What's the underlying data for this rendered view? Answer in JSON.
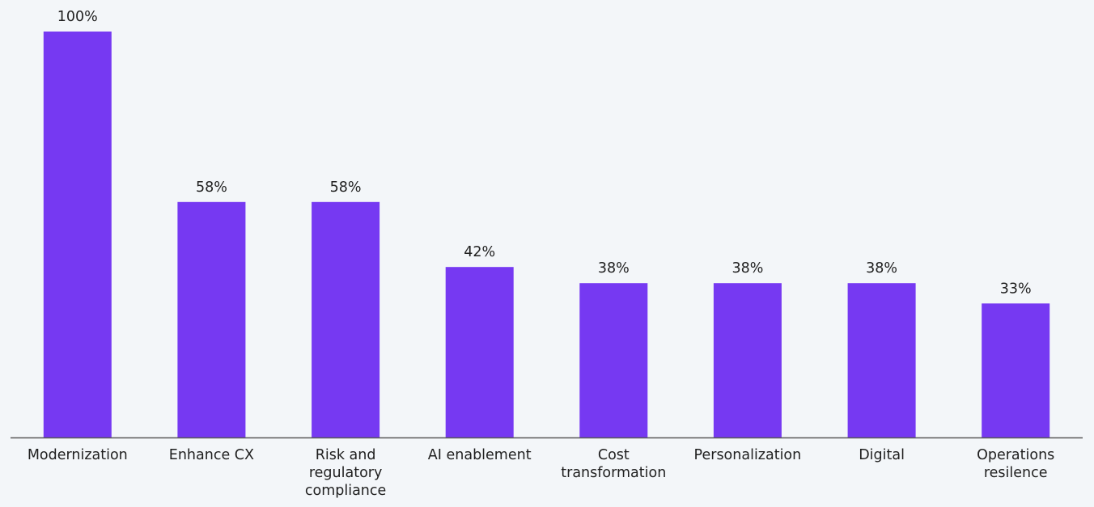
{
  "chart_data": {
    "type": "bar",
    "title": "",
    "xlabel": "",
    "ylabel": "",
    "categories": [
      [
        "Modernization"
      ],
      [
        "Enhance CX"
      ],
      [
        "Risk and",
        "regulatory",
        "compliance"
      ],
      [
        "AI enablement"
      ],
      [
        "Cost",
        "transformation"
      ],
      [
        "Personalization"
      ],
      [
        "Digital"
      ],
      [
        "Operations",
        "resilence"
      ]
    ],
    "values": [
      100,
      58,
      58,
      42,
      38,
      38,
      38,
      33
    ],
    "value_suffix": "%",
    "ylim": [
      0,
      100
    ],
    "grid": false,
    "bar_color": "#7639f2",
    "axis_color": "#595959",
    "background": "#f3f6f9"
  }
}
